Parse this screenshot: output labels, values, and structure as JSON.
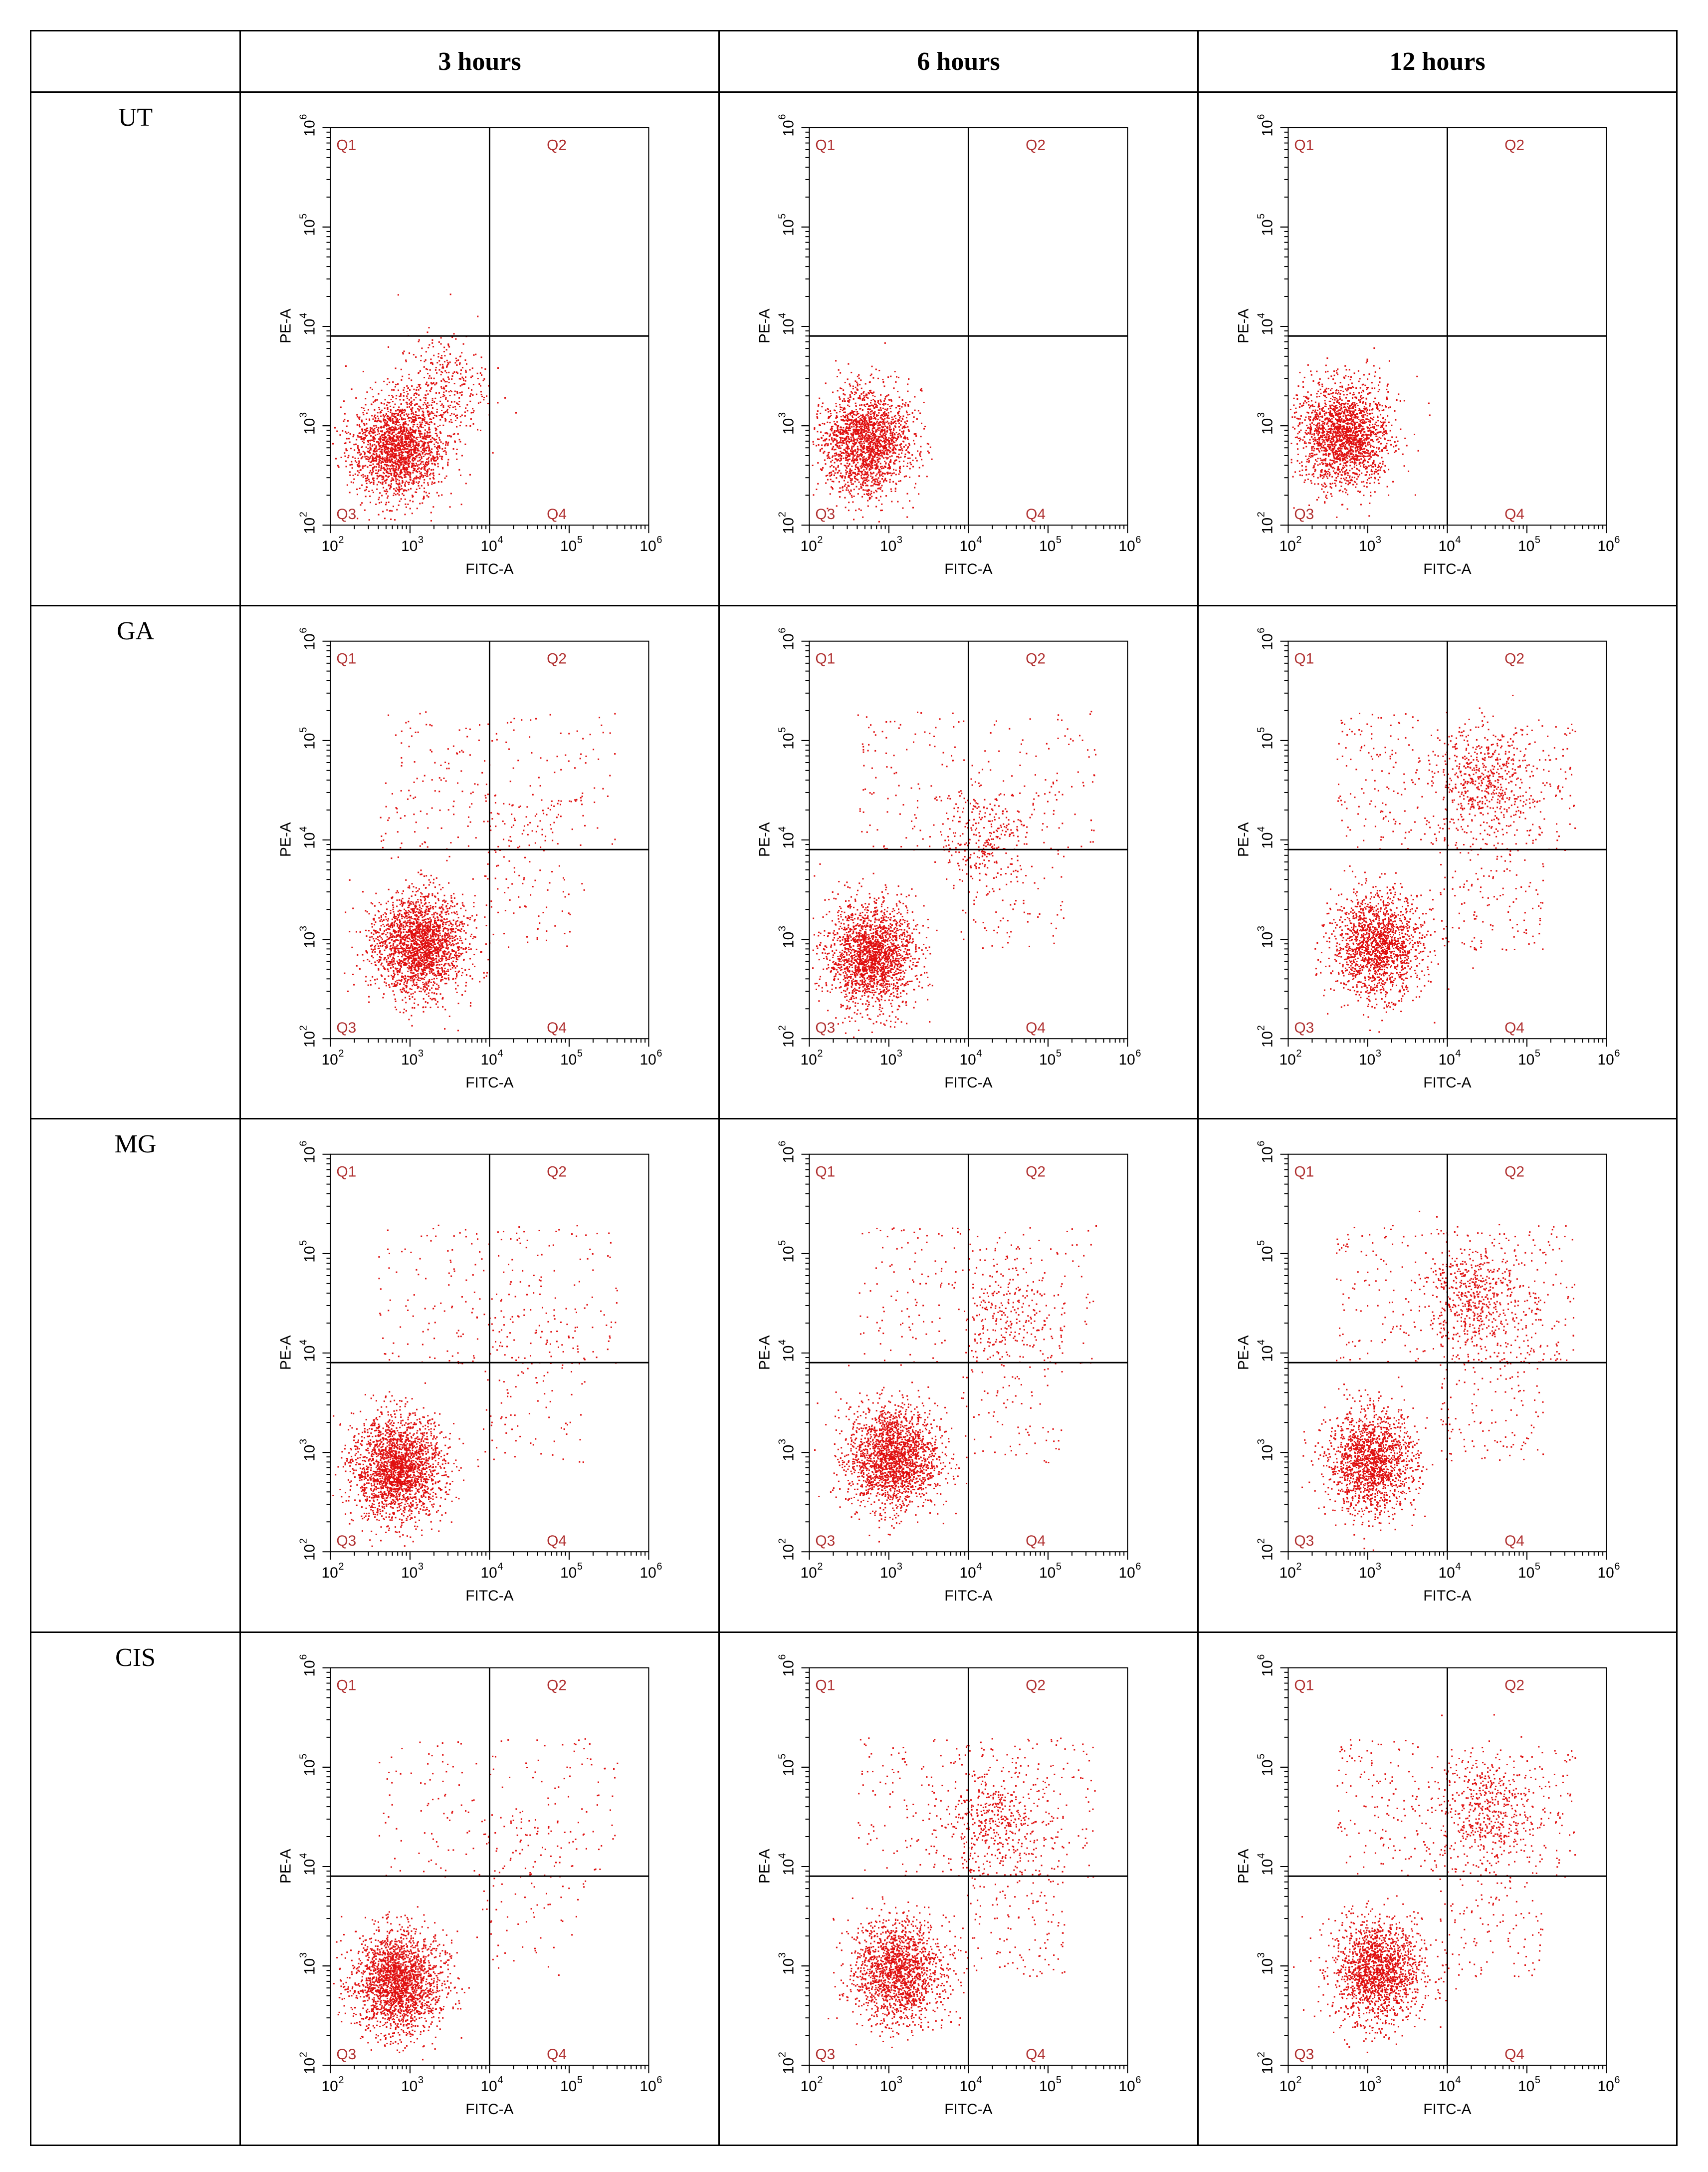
{
  "table": {
    "corner": "",
    "columns": [
      "3 hours",
      "6 hours",
      "12 hours"
    ],
    "rows": [
      "UT",
      "GA",
      "MG",
      "CIS"
    ]
  },
  "axes": {
    "xlabel": "FITC-A",
    "ylabel": "PE-A",
    "x_ticks": [
      {
        "base": "10",
        "exp": "2"
      },
      {
        "base": "10",
        "exp": "3"
      },
      {
        "base": "10",
        "exp": "4"
      },
      {
        "base": "10",
        "exp": "5"
      },
      {
        "base": "10",
        "exp": "6"
      }
    ],
    "y_ticks": [
      {
        "base": "10",
        "exp": "2"
      },
      {
        "base": "10",
        "exp": "3"
      },
      {
        "base": "10",
        "exp": "4"
      },
      {
        "base": "10",
        "exp": "5"
      },
      {
        "base": "10",
        "exp": "6"
      }
    ],
    "quadrants": [
      "Q1",
      "Q2",
      "Q3",
      "Q4"
    ]
  },
  "colors": {
    "dots": "#e01010",
    "grid": "#000000",
    "quadrant_label": "#b03030"
  },
  "chart_data": [
    {
      "type": "scatter",
      "row": "UT",
      "column": "3 hours",
      "xlabel": "FITC-A",
      "ylabel": "PE-A",
      "xscale": "log",
      "yscale": "log",
      "xlim": [
        100,
        1000000
      ],
      "ylim": [
        100,
        1000000
      ],
      "gate": {
        "x": 10000,
        "y": 8000
      },
      "clusters": [
        {
          "x": 700,
          "y": 600,
          "count": 2000
        },
        {
          "x": 2500,
          "y": 2500,
          "count": 350
        }
      ],
      "sparse_upper": 0,
      "sparse_right": 0
    },
    {
      "type": "scatter",
      "row": "UT",
      "column": "6 hours",
      "xlabel": "FITC-A",
      "ylabel": "PE-A",
      "xscale": "log",
      "yscale": "log",
      "xlim": [
        100,
        1000000
      ],
      "ylim": [
        100,
        1000000
      ],
      "gate": {
        "x": 10000,
        "y": 8000
      },
      "clusters": [
        {
          "x": 500,
          "y": 700,
          "count": 2000
        }
      ],
      "sparse_upper": 0,
      "sparse_right": 0
    },
    {
      "type": "scatter",
      "row": "UT",
      "column": "12 hours",
      "xlabel": "FITC-A",
      "ylabel": "PE-A",
      "xscale": "log",
      "yscale": "log",
      "xlim": [
        100,
        1000000
      ],
      "ylim": [
        100,
        1000000
      ],
      "gate": {
        "x": 10000,
        "y": 8000
      },
      "clusters": [
        {
          "x": 500,
          "y": 800,
          "count": 2000
        }
      ],
      "sparse_upper": 0,
      "sparse_right": 0
    },
    {
      "type": "scatter",
      "row": "GA",
      "column": "3 hours",
      "xlabel": "FITC-A",
      "ylabel": "PE-A",
      "xscale": "log",
      "yscale": "log",
      "xlim": [
        100,
        1000000
      ],
      "ylim": [
        100,
        1000000
      ],
      "gate": {
        "x": 10000,
        "y": 8000
      },
      "clusters": [
        {
          "x": 1300,
          "y": 900,
          "count": 2200
        }
      ],
      "sparse_upper": 220,
      "sparse_right": 120
    },
    {
      "type": "scatter",
      "row": "GA",
      "column": "6 hours",
      "xlabel": "FITC-A",
      "ylabel": "PE-A",
      "xscale": "log",
      "yscale": "log",
      "xlim": [
        100,
        1000000
      ],
      "ylim": [
        100,
        1000000
      ],
      "gate": {
        "x": 10000,
        "y": 8000
      },
      "clusters": [
        {
          "x": 600,
          "y": 700,
          "count": 2000
        },
        {
          "x": 15000,
          "y": 10000,
          "count": 250
        }
      ],
      "sparse_upper": 200,
      "sparse_right": 120
    },
    {
      "type": "scatter",
      "row": "GA",
      "column": "12 hours",
      "xlabel": "FITC-A",
      "ylabel": "PE-A",
      "xscale": "log",
      "yscale": "log",
      "xlim": [
        100,
        1000000
      ],
      "ylim": [
        100,
        1000000
      ],
      "gate": {
        "x": 10000,
        "y": 8000
      },
      "clusters": [
        {
          "x": 1300,
          "y": 900,
          "count": 1600
        },
        {
          "x": 30000,
          "y": 40000,
          "count": 450
        }
      ],
      "sparse_upper": 350,
      "sparse_right": 200
    },
    {
      "type": "scatter",
      "row": "MG",
      "column": "3 hours",
      "xlabel": "FITC-A",
      "ylabel": "PE-A",
      "xscale": "log",
      "yscale": "log",
      "xlim": [
        100,
        1000000
      ],
      "ylim": [
        100,
        1000000
      ],
      "gate": {
        "x": 10000,
        "y": 8000
      },
      "clusters": [
        {
          "x": 700,
          "y": 700,
          "count": 2200
        }
      ],
      "sparse_upper": 220,
      "sparse_right": 120
    },
    {
      "type": "scatter",
      "row": "MG",
      "column": "6 hours",
      "xlabel": "FITC-A",
      "ylabel": "PE-A",
      "xscale": "log",
      "yscale": "log",
      "xlim": [
        100,
        1000000
      ],
      "ylim": [
        100,
        1000000
      ],
      "gate": {
        "x": 10000,
        "y": 8000
      },
      "clusters": [
        {
          "x": 1100,
          "y": 900,
          "count": 2000
        },
        {
          "x": 30000,
          "y": 30000,
          "count": 200
        }
      ],
      "sparse_upper": 220,
      "sparse_right": 120
    },
    {
      "type": "scatter",
      "row": "MG",
      "column": "12 hours",
      "xlabel": "FITC-A",
      "ylabel": "PE-A",
      "xscale": "log",
      "yscale": "log",
      "xlim": [
        100,
        1000000
      ],
      "ylim": [
        100,
        1000000
      ],
      "gate": {
        "x": 10000,
        "y": 8000
      },
      "clusters": [
        {
          "x": 1100,
          "y": 800,
          "count": 1600
        },
        {
          "x": 20000,
          "y": 40000,
          "count": 450
        }
      ],
      "sparse_upper": 350,
      "sparse_right": 200
    },
    {
      "type": "scatter",
      "row": "CIS",
      "column": "3 hours",
      "xlabel": "FITC-A",
      "ylabel": "PE-A",
      "xscale": "log",
      "yscale": "log",
      "xlim": [
        100,
        1000000
      ],
      "ylim": [
        100,
        1000000
      ],
      "gate": {
        "x": 10000,
        "y": 8000
      },
      "clusters": [
        {
          "x": 700,
          "y": 700,
          "count": 2100
        }
      ],
      "sparse_upper": 180,
      "sparse_right": 100
    },
    {
      "type": "scatter",
      "row": "CIS",
      "column": "6 hours",
      "xlabel": "FITC-A",
      "ylabel": "PE-A",
      "xscale": "log",
      "yscale": "log",
      "xlim": [
        100,
        1000000
      ],
      "ylim": [
        100,
        1000000
      ],
      "gate": {
        "x": 10000,
        "y": 8000
      },
      "clusters": [
        {
          "x": 1300,
          "y": 900,
          "count": 1700
        },
        {
          "x": 20000,
          "y": 30000,
          "count": 350
        }
      ],
      "sparse_upper": 300,
      "sparse_right": 180
    },
    {
      "type": "scatter",
      "row": "CIS",
      "column": "12 hours",
      "xlabel": "FITC-A",
      "ylabel": "PE-A",
      "xscale": "log",
      "yscale": "log",
      "xlim": [
        100,
        1000000
      ],
      "ylim": [
        100,
        1000000
      ],
      "gate": {
        "x": 10000,
        "y": 8000
      },
      "clusters": [
        {
          "x": 1300,
          "y": 900,
          "count": 1700
        },
        {
          "x": 30000,
          "y": 40000,
          "count": 400
        }
      ],
      "sparse_upper": 350,
      "sparse_right": 180
    }
  ]
}
